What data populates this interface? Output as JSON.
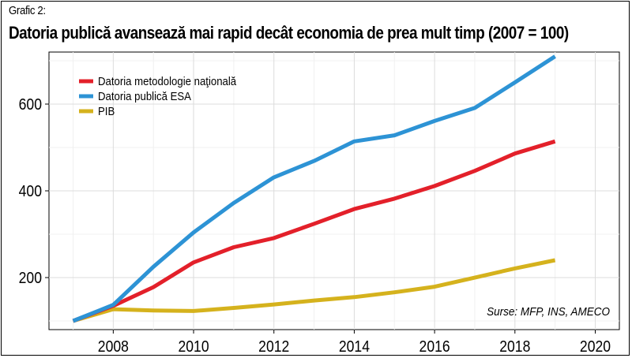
{
  "kicker": "Grafic 2:",
  "title": "Datoria publică avansează mai rapid decât economia de prea mult timp (2007 = 100)",
  "source": "Surse: MFP, INS, AMECO",
  "chart_data": {
    "type": "line",
    "x": [
      2007,
      2008,
      2009,
      2010,
      2011,
      2012,
      2013,
      2014,
      2015,
      2016,
      2017,
      2018,
      2019
    ],
    "series": [
      {
        "name": "Datoria metodologie naţională",
        "color": "#e3202a",
        "values": [
          100,
          135,
          178,
          235,
          270,
          291,
          324,
          358,
          382,
          411,
          446,
          486,
          514
        ]
      },
      {
        "name": "Datoria publică ESA",
        "color": "#2d93d5",
        "values": [
          100,
          137,
          225,
          304,
          372,
          431,
          469,
          514,
          528,
          561,
          591,
          650,
          710
        ]
      },
      {
        "name": "PIB",
        "color": "#d5b21d",
        "values": [
          100,
          127,
          124,
          123,
          130,
          138,
          147,
          155,
          166,
          179,
          200,
          221,
          240
        ]
      }
    ],
    "xlim": [
      2006.4,
      2020.6
    ],
    "ylim": [
      80,
      720
    ],
    "xticks": [
      "2008",
      "2010",
      "2012",
      "2014",
      "2016",
      "2018",
      "2020"
    ],
    "yticks": [
      "200",
      "400",
      "600"
    ],
    "grid": true,
    "legend": "top-left"
  }
}
